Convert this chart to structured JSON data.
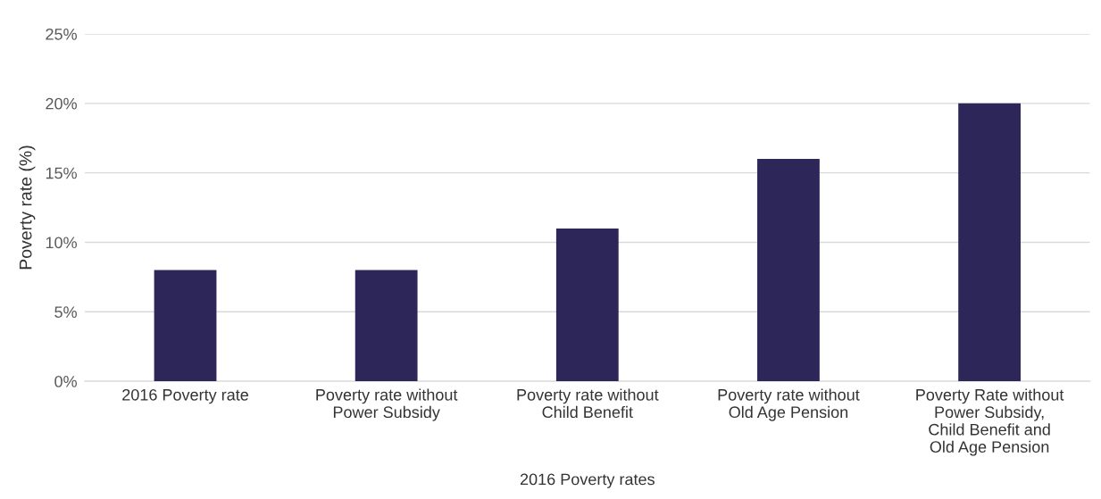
{
  "chart_data": {
    "type": "bar",
    "xlabel": "2016 Poverty rates",
    "ylabel": "Poverty rate (%)",
    "categories": [
      "2016 Poverty rate",
      "Poverty rate without\nPower Subsidy",
      "Poverty rate without\nChild Benefit",
      "Poverty rate without\nOld Age Pension",
      "Poverty Rate without\nPower Subsidy,\nChild Benefit and\nOld Age Pension"
    ],
    "values": [
      8,
      8,
      11,
      16,
      20
    ],
    "color": "#2d2659",
    "ylim": [
      0,
      25
    ],
    "yticks": [
      {
        "value": 0,
        "label": "0%"
      },
      {
        "value": 5,
        "label": "5%"
      },
      {
        "value": 10,
        "label": "10%"
      },
      {
        "value": 15,
        "label": "15%"
      },
      {
        "value": 20,
        "label": "20%"
      },
      {
        "value": 25,
        "label": "25%"
      }
    ],
    "grid": "y"
  }
}
